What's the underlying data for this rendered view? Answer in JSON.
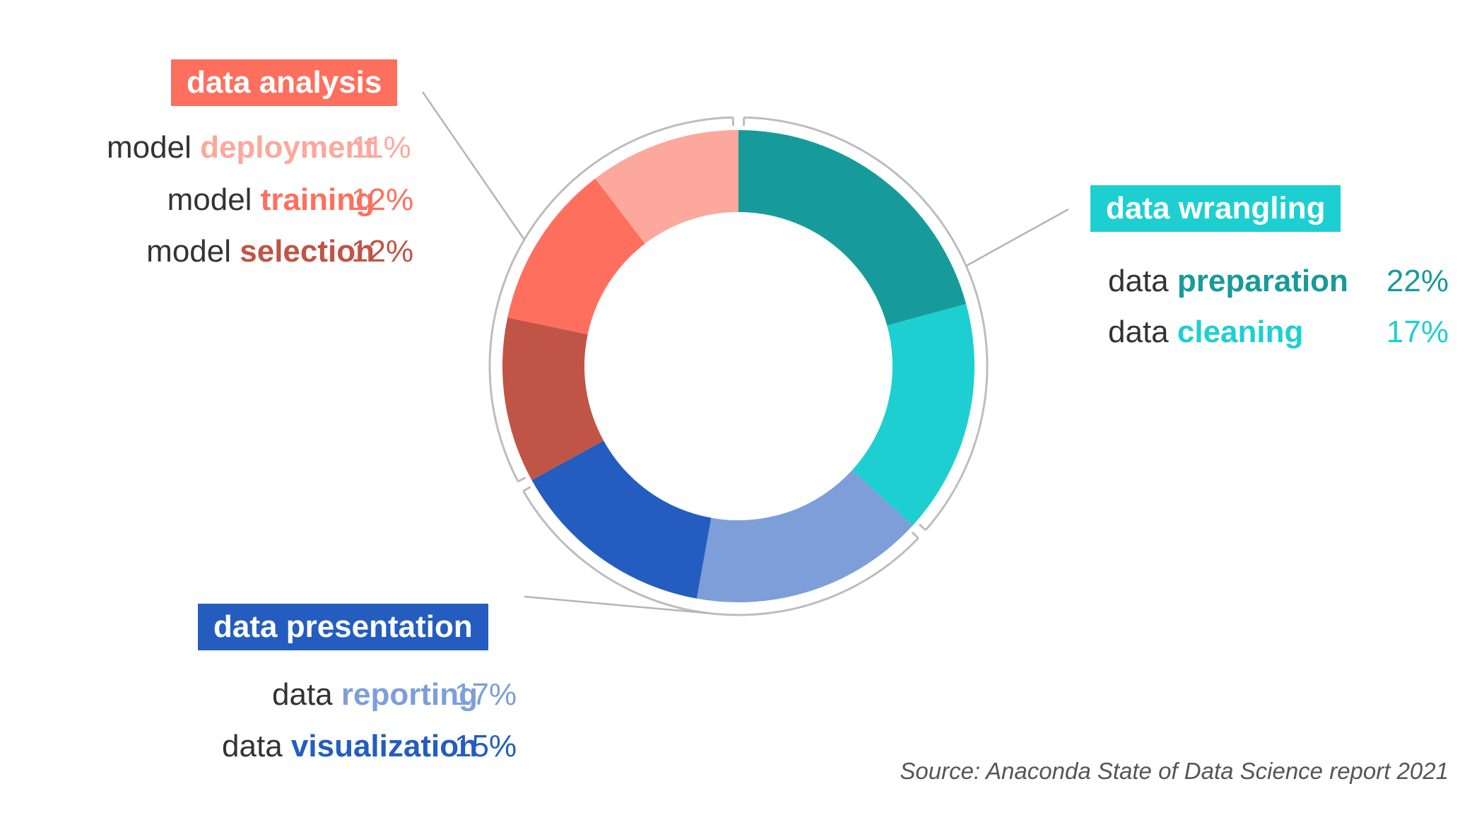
{
  "chart_data": {
    "type": "pie",
    "style": "donut",
    "groups": [
      {
        "name": "data analysis",
        "color": "#ff6f5e",
        "items": [
          {
            "prefix": "model",
            "keyword": "deployment",
            "value": 11,
            "label": "11%",
            "color": "#fca89d"
          },
          {
            "prefix": "model",
            "keyword": "training",
            "value": 12,
            "label": "12%",
            "color": "#ff6f5e"
          },
          {
            "prefix": "model",
            "keyword": "selection",
            "value": 12,
            "label": "12%",
            "color": "#c05446"
          }
        ]
      },
      {
        "name": "data wrangling",
        "color": "#1ecfd1",
        "items": [
          {
            "prefix": "data",
            "keyword": "preparation",
            "value": 22,
            "label": "22%",
            "color": "#169b9a"
          },
          {
            "prefix": "data",
            "keyword": "cleaning",
            "value": 17,
            "label": "17%",
            "color": "#1ecfd1"
          }
        ]
      },
      {
        "name": "data presentation",
        "color": "#245dbf",
        "items": [
          {
            "prefix": "data",
            "keyword": "reporting",
            "value": 17,
            "label": "17%",
            "color": "#7d9ed9"
          },
          {
            "prefix": "data",
            "keyword": "visualization",
            "value": 15,
            "label": "15%",
            "color": "#245dbf"
          }
        ]
      }
    ],
    "slice_order": [
      "preparation",
      "cleaning",
      "reporting",
      "visualization",
      "selection",
      "training",
      "deployment"
    ],
    "source": "Source: Anaconda State of Data Science report 2021"
  }
}
